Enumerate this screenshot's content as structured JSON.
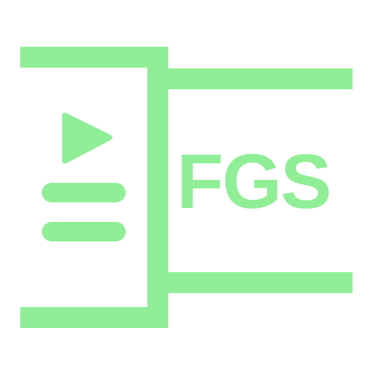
{
  "logo": {
    "text": "FGS",
    "color": "#90ee96",
    "icons": [
      "play-icon",
      "list-lines-icon"
    ]
  }
}
